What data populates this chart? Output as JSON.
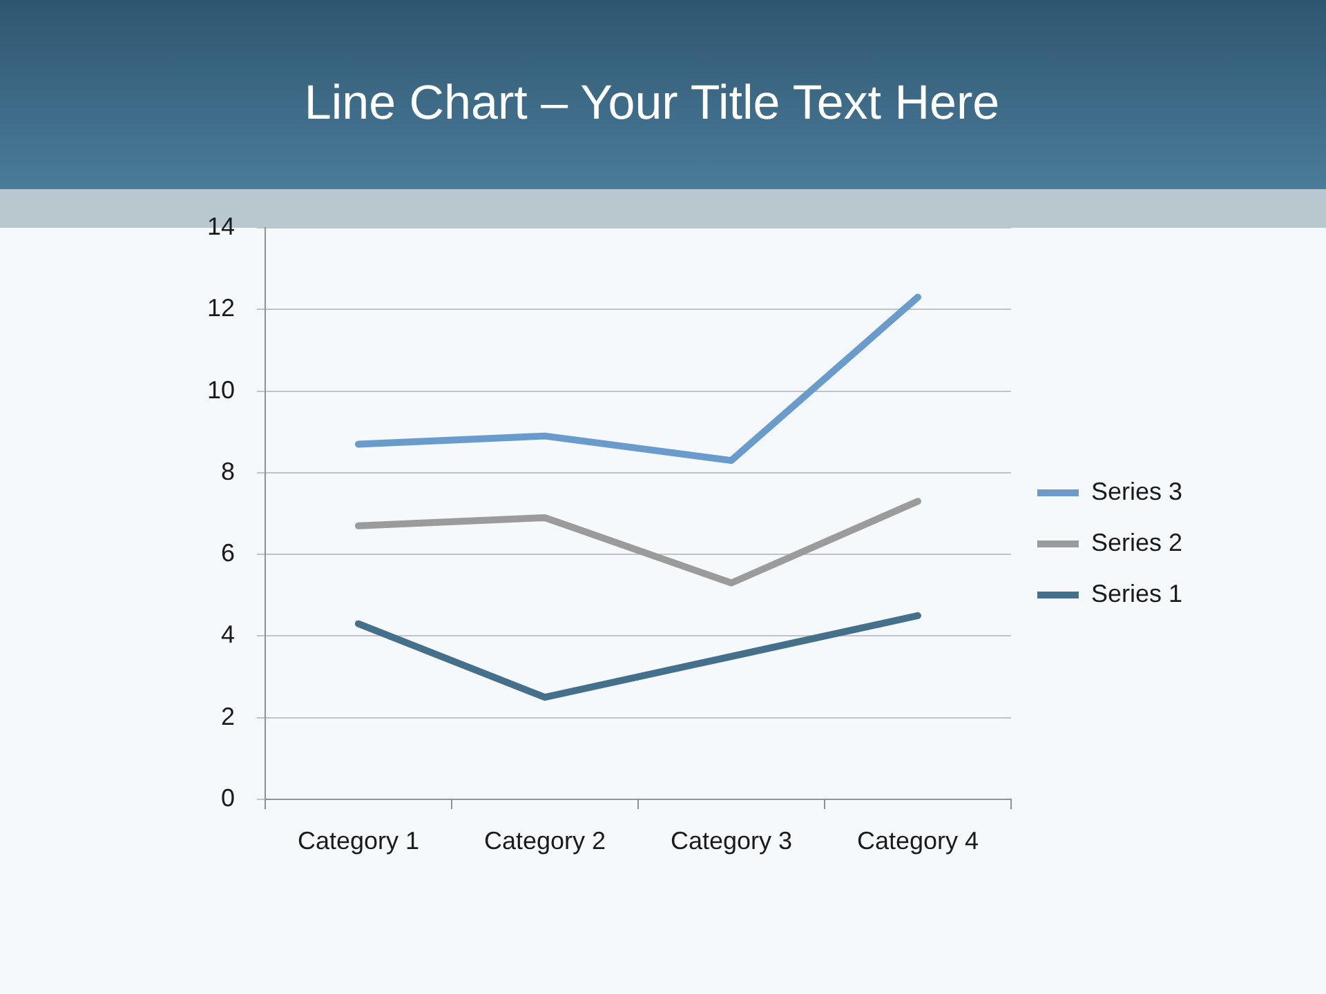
{
  "chart_data": {
    "type": "line",
    "title": "Line Chart – Your Title Text Here",
    "categories": [
      "Category 1",
      "Category 2",
      "Category 3",
      "Category 4"
    ],
    "series": [
      {
        "name": "Series 1",
        "color": "#45708c",
        "values": [
          4.3,
          2.5,
          3.5,
          4.5
        ]
      },
      {
        "name": "Series 2",
        "color": "#9b9b9b",
        "values": [
          6.7,
          6.9,
          5.3,
          7.3
        ]
      },
      {
        "name": "Series 3",
        "color": "#6a9bcd",
        "values": [
          8.7,
          8.9,
          8.3,
          12.3
        ]
      }
    ],
    "ylim": [
      0,
      14
    ],
    "yticks": [
      0,
      2,
      4,
      6,
      8,
      10,
      12,
      14
    ],
    "grid": "y",
    "legend": "right",
    "marker": "none"
  }
}
